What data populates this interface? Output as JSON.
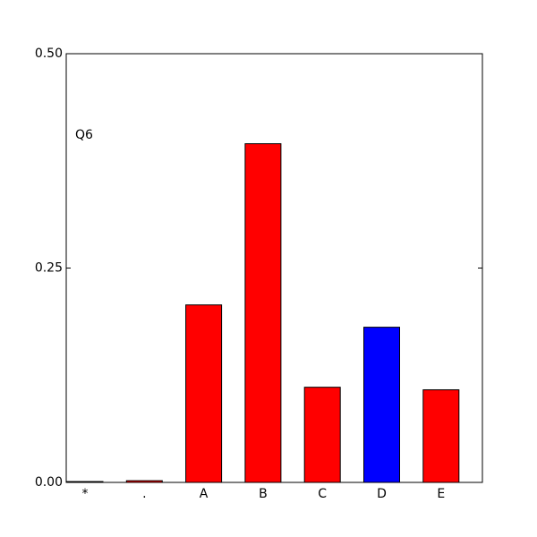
{
  "chart_data": {
    "type": "bar",
    "annotation": "Q6",
    "categories": [
      "*",
      ".",
      "A",
      "B",
      "C",
      "D",
      "E"
    ],
    "values": [
      0.001,
      0.002,
      0.207,
      0.395,
      0.111,
      0.181,
      0.108
    ],
    "colors": [
      "#ff0000",
      "#ff0000",
      "#ff0000",
      "#ff0000",
      "#ff0000",
      "#0000ff",
      "#ff0000"
    ],
    "ylim": [
      0,
      0.5
    ],
    "yticks": [
      {
        "value": 0,
        "label": "0.00"
      },
      0.25,
      {
        "value": 0.5,
        "label": "0.50"
      }
    ],
    "grid": false
  }
}
